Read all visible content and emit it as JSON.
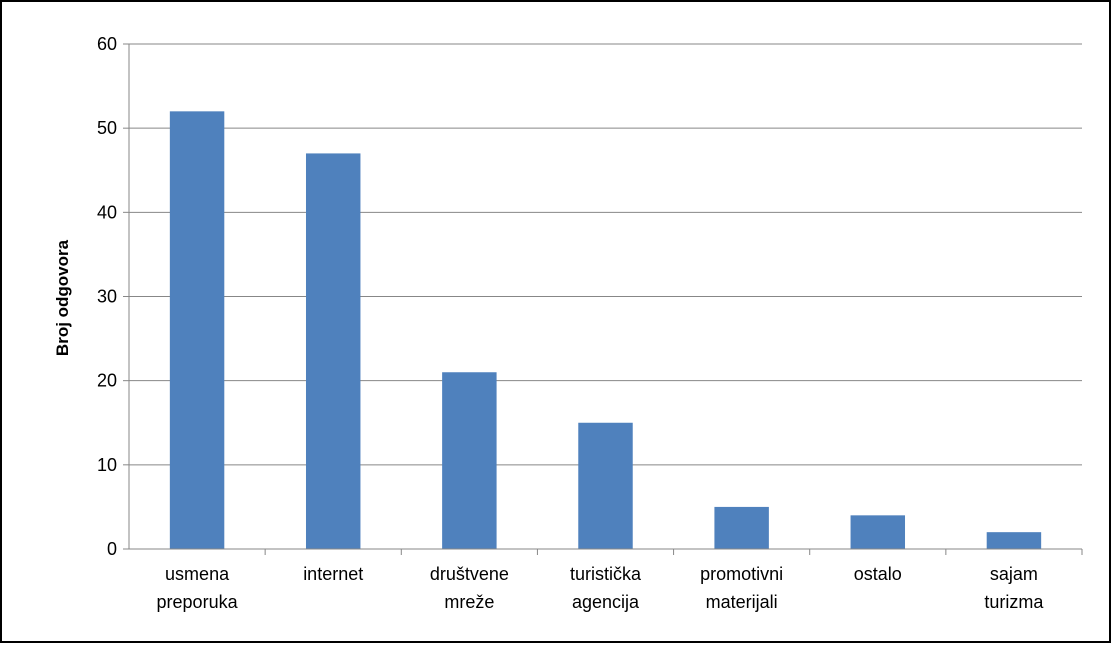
{
  "chart_data": {
    "type": "bar",
    "categories": [
      [
        "usmena",
        "preporuka"
      ],
      [
        "internet"
      ],
      [
        "društvene",
        "mreže"
      ],
      [
        "turistička",
        "agencija"
      ],
      [
        "promotivni",
        "materijali"
      ],
      [
        "ostalo"
      ],
      [
        "sajam",
        "turizma"
      ]
    ],
    "values": [
      52,
      47,
      21,
      15,
      5,
      4,
      2
    ],
    "ylabel": "Broj odgovora",
    "ylim": [
      0,
      60
    ],
    "yticks": [
      0,
      10,
      20,
      30,
      40,
      50,
      60
    ],
    "grid": true,
    "legend": "none",
    "colors": {
      "bar": "#4f81bd",
      "grid": "#878787",
      "text": "#000000"
    }
  }
}
